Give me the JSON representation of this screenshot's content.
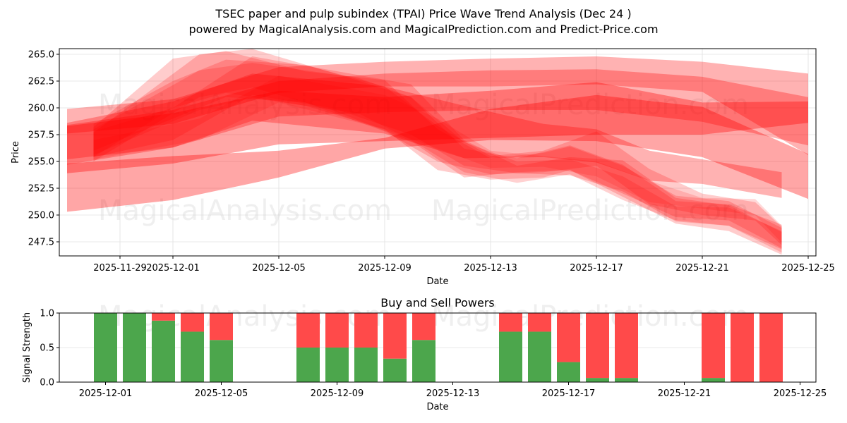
{
  "header": {
    "title": "TSEC paper and pulp subindex (TPAI) Price Wave Trend Analysis (Dec 24 )",
    "subtitle": "powered by MagicalAnalysis.com and MagicalPrediction.com and Predict-Price.com"
  },
  "watermarks": [
    "MagicalAnalysis.com",
    "MagicalPrediction.com"
  ],
  "colors": {
    "band": "#ff0000",
    "buy": "#4ca64c",
    "sell": "#ff4a4a",
    "grid": "#e0e0e0"
  },
  "chart_data": [
    {
      "type": "area",
      "title": "",
      "xlabel": "Date",
      "ylabel": "Price",
      "ylim": [
        246.2,
        265.5
      ],
      "grid": true,
      "x_ticks": [
        "2025-11-29",
        "2025-12-01",
        "2025-12-05",
        "2025-12-09",
        "2025-12-13",
        "2025-12-17",
        "2025-12-21",
        "2025-12-25"
      ],
      "y_ticks": [
        "247.5",
        "250.0",
        "252.5",
        "255.0",
        "257.5",
        "260.0",
        "262.5",
        "265.0"
      ],
      "series_note": "Translucent red price-wave bands; each band listed as [day offset from 2025-12-01, upper price, lower price]",
      "bands": [
        {
          "opacity": 0.3,
          "points": [
            [
              -4,
              259.9,
              257.6
            ],
            [
              0,
              260.8,
              258.5
            ],
            [
              4,
              263.8,
              261.4
            ],
            [
              8,
              264.3,
              262.0
            ],
            [
              12,
              264.6,
              262.0
            ],
            [
              16,
              264.8,
              262.2
            ],
            [
              20,
              264.3,
              261.5
            ],
            [
              24,
              263.2,
              255.6
            ]
          ]
        },
        {
          "opacity": 0.3,
          "points": [
            [
              -4,
              258.4,
              254.7
            ],
            [
              0,
              259.8,
              256.3
            ],
            [
              4,
              262.5,
              259.2
            ],
            [
              8,
              263.2,
              259.6
            ],
            [
              12,
              263.5,
              259.8
            ],
            [
              16,
              263.6,
              259.8
            ],
            [
              20,
              262.9,
              258.7
            ],
            [
              24,
              261.0,
              256.5
            ]
          ]
        },
        {
          "opacity": 0.35,
          "points": [
            [
              -4,
              258.3,
              253.9
            ],
            [
              0,
              259.5,
              254.8
            ],
            [
              4,
              261.6,
              256.6
            ],
            [
              8,
              261.0,
              256.9
            ],
            [
              12,
              261.6,
              257.2
            ],
            [
              16,
              262.4,
              257.5
            ],
            [
              20,
              260.5,
              257.5
            ],
            [
              24,
              260.6,
              258.6
            ]
          ]
        },
        {
          "opacity": 0.35,
          "points": [
            [
              -4,
              254.8,
              250.3
            ],
            [
              0,
              255.5,
              251.4
            ],
            [
              4,
              256.0,
              253.5
            ],
            [
              8,
              257.2,
              256.2
            ],
            [
              12,
              259.9,
              257.0
            ],
            [
              16,
              261.2,
              256.9
            ],
            [
              20,
              260.1,
              255.4
            ],
            [
              24,
              255.7,
              251.5
            ]
          ]
        },
        {
          "opacity": 0.3,
          "points": [
            [
              -4,
              258.6,
              255.2
            ],
            [
              0,
              260.6,
              256.3
            ],
            [
              3,
              263.2,
              258.8
            ],
            [
              8,
              262.0,
              257.6
            ],
            [
              11,
              260.2,
              255.3
            ],
            [
              14,
              258.5,
              255.4
            ],
            [
              16,
              258.0,
              254.9
            ],
            [
              18,
              256.0,
              253.2
            ],
            [
              20,
              255.2,
              252.9
            ],
            [
              23,
              254.0,
              251.6
            ]
          ]
        },
        {
          "opacity": 0.2,
          "points": [
            [
              -3,
              258.2,
              255.4
            ],
            [
              0,
              264.6,
              260.0
            ],
            [
              2,
              265.3,
              261.4
            ],
            [
              5,
              263.4,
              260.2
            ],
            [
              8,
              262.6,
              258.0
            ],
            [
              10,
              258.0,
              254.2
            ],
            [
              12,
              255.3,
              253.3
            ],
            [
              14,
              255.8,
              253.5
            ],
            [
              15,
              256.4,
              254.2
            ],
            [
              17,
              254.6,
              251.7
            ],
            [
              19,
              251.8,
              249.2
            ],
            [
              21,
              251.3,
              248.5
            ],
            [
              23,
              248.8,
              246.3
            ]
          ]
        },
        {
          "opacity": 0.2,
          "points": [
            [
              -3,
              257.7,
              255.0
            ],
            [
              1,
              265.0,
              261.0
            ],
            [
              3,
              265.5,
              261.9
            ],
            [
              6,
              263.3,
              259.8
            ],
            [
              9,
              261.0,
              256.9
            ],
            [
              11,
              256.2,
              253.5
            ],
            [
              13,
              255.3,
              254.0
            ],
            [
              15,
              256.5,
              254.2
            ],
            [
              17,
              254.7,
              252.0
            ],
            [
              19,
              251.3,
              249.8
            ],
            [
              21,
              251.0,
              249.5
            ],
            [
              23,
              249.1,
              246.9
            ]
          ]
        },
        {
          "opacity": 0.2,
          "points": [
            [
              -3,
              258.5,
              256.0
            ],
            [
              0,
              262.5,
              259.0
            ],
            [
              2,
              264.5,
              261.0
            ],
            [
              5,
              264.0,
              260.5
            ],
            [
              8,
              262.0,
              257.8
            ],
            [
              10,
              258.3,
              255.0
            ],
            [
              12,
              255.5,
              253.8
            ],
            [
              14,
              256.0,
              254.0
            ],
            [
              16,
              257.8,
              254.6
            ],
            [
              18,
              254.3,
              251.0
            ],
            [
              20,
              252.0,
              250.0
            ],
            [
              22,
              251.2,
              249.5
            ],
            [
              23,
              248.9,
              247.2
            ]
          ]
        },
        {
          "opacity": 0.2,
          "points": [
            [
              -3,
              257.8,
              255.4
            ],
            [
              0,
              260.0,
              257.0
            ],
            [
              3,
              264.8,
              261.2
            ],
            [
              6,
              263.5,
              260.0
            ],
            [
              9,
              262.2,
              257.5
            ],
            [
              11,
              257.0,
              254.6
            ],
            [
              13,
              254.6,
              253.9
            ],
            [
              15,
              255.4,
              253.7
            ],
            [
              17,
              255.1,
              252.2
            ],
            [
              19,
              251.6,
              249.4
            ],
            [
              21,
              250.9,
              249.0
            ],
            [
              23,
              248.4,
              246.8
            ]
          ]
        },
        {
          "opacity": 0.18,
          "points": [
            [
              -3,
              258.0,
              255.6
            ],
            [
              1,
              263.5,
              259.8
            ],
            [
              3,
              264.2,
              260.9
            ],
            [
              7,
              262.8,
              259.5
            ],
            [
              9,
              261.0,
              257.0
            ],
            [
              11,
              256.8,
              254.0
            ],
            [
              13,
              255.0,
              253.0
            ],
            [
              15,
              255.2,
              253.8
            ],
            [
              17,
              253.6,
              251.4
            ],
            [
              19,
              250.8,
              249.5
            ],
            [
              21,
              250.7,
              249.0
            ],
            [
              23,
              248.5,
              246.5
            ]
          ]
        },
        {
          "opacity": 0.15,
          "points": [
            [
              -3,
              257.0,
              255.2
            ],
            [
              1,
              259.0,
              257.0
            ],
            [
              4,
              263.0,
              260.5
            ],
            [
              8,
              261.2,
              258.0
            ],
            [
              10,
              259.0,
              256.2
            ],
            [
              12,
              256.0,
              254.4
            ],
            [
              14,
              255.5,
              254.5
            ],
            [
              16,
              255.0,
              253.6
            ],
            [
              18,
              253.2,
              251.2
            ],
            [
              20,
              251.6,
              250.6
            ],
            [
              22,
              251.5,
              250.0
            ],
            [
              23,
              249.0,
              247.4
            ]
          ]
        }
      ]
    },
    {
      "type": "bar",
      "title": "Buy and Sell Powers",
      "xlabel": "Date",
      "ylabel": "Signal Strength",
      "ylim": [
        0,
        1.0
      ],
      "grid": true,
      "x_ticks": [
        "2025-12-01",
        "2025-12-05",
        "2025-12-09",
        "2025-12-13",
        "2025-12-17",
        "2025-12-21",
        "2025-12-25"
      ],
      "y_ticks": [
        "0.0",
        "0.5",
        "1.0"
      ],
      "categories": [
        "2025-12-01",
        "2025-12-02",
        "2025-12-03",
        "2025-12-04",
        "2025-12-05",
        "2025-12-08",
        "2025-12-09",
        "2025-12-10",
        "2025-12-11",
        "2025-12-12",
        "2025-12-15",
        "2025-12-16",
        "2025-12-17",
        "2025-12-18",
        "2025-12-19",
        "2025-12-22",
        "2025-12-23",
        "2025-12-24"
      ],
      "series": [
        {
          "name": "Buy",
          "color": "#4ca64c",
          "values": [
            1.0,
            1.0,
            0.89,
            0.73,
            0.61,
            0.5,
            0.5,
            0.5,
            0.34,
            0.61,
            0.73,
            0.73,
            0.29,
            0.06,
            0.06,
            0.06,
            0.0,
            0.0
          ]
        },
        {
          "name": "Sell",
          "color": "#ff4a4a",
          "values": [
            0.0,
            0.0,
            0.11,
            0.27,
            0.39,
            0.5,
            0.5,
            0.5,
            0.66,
            0.39,
            0.27,
            0.27,
            0.71,
            0.94,
            0.94,
            0.94,
            1.0,
            1.0
          ]
        }
      ],
      "day_offsets": [
        0,
        1,
        2,
        3,
        4,
        7,
        8,
        9,
        10,
        11,
        14,
        15,
        16,
        17,
        18,
        21,
        22,
        23
      ]
    }
  ]
}
